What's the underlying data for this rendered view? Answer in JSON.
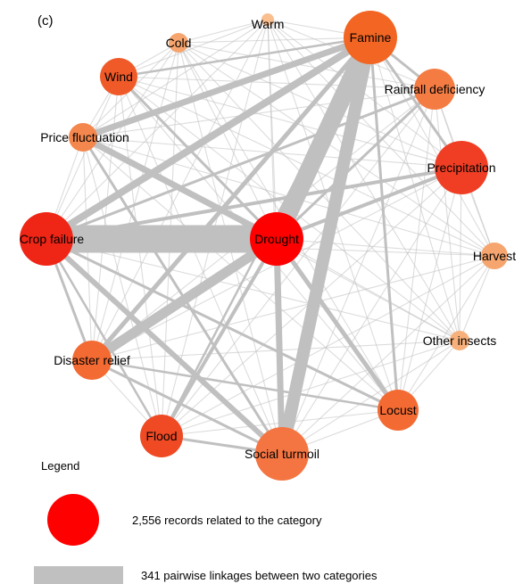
{
  "panel_label": "(c)",
  "legend": {
    "title": "Legend",
    "node_text": "2,556 records related to the category",
    "edge_text": "341 pairwise linkages between two categories"
  },
  "colors": {
    "edge": "#c0c0c0",
    "node_max": "#ff0000",
    "node_min": "#f7b07a",
    "legend_node": "#ff0000",
    "legend_edge": "#c0c0c0"
  },
  "nodes": [
    {
      "id": "famine",
      "label": "Famine",
      "color": "#f26522"
    },
    {
      "id": "warm",
      "label": "Warm",
      "color": "#f9bf8f"
    },
    {
      "id": "cold",
      "label": "Cold",
      "color": "#f6a56e"
    },
    {
      "id": "wind",
      "label": "Wind",
      "color": "#f05a28"
    },
    {
      "id": "price-fluctuation",
      "label": "Price fluctuation",
      "color": "#f4874d"
    },
    {
      "id": "rainfall-deficiency",
      "label": "Rainfall deficiency",
      "color": "#f47c43"
    },
    {
      "id": "precipitation",
      "label": "Precipitation",
      "color": "#ef3e24"
    },
    {
      "id": "crop-failure",
      "label": "Crop failure",
      "color": "#ef2516"
    },
    {
      "id": "drought",
      "label": "Drought",
      "color": "#ff0000"
    },
    {
      "id": "harvest",
      "label": "Harvest",
      "color": "#f6a56e"
    },
    {
      "id": "other-insects",
      "label": "Other insects",
      "color": "#f7b07a"
    },
    {
      "id": "disaster-relief",
      "label": "Disaster relief",
      "color": "#f36a32"
    },
    {
      "id": "locust",
      "label": "Locust",
      "color": "#f36a32"
    },
    {
      "id": "flood",
      "label": "Flood",
      "color": "#ef4a24"
    },
    {
      "id": "social-turmoil",
      "label": "Social turmoil",
      "color": "#f47542"
    }
  ]
}
